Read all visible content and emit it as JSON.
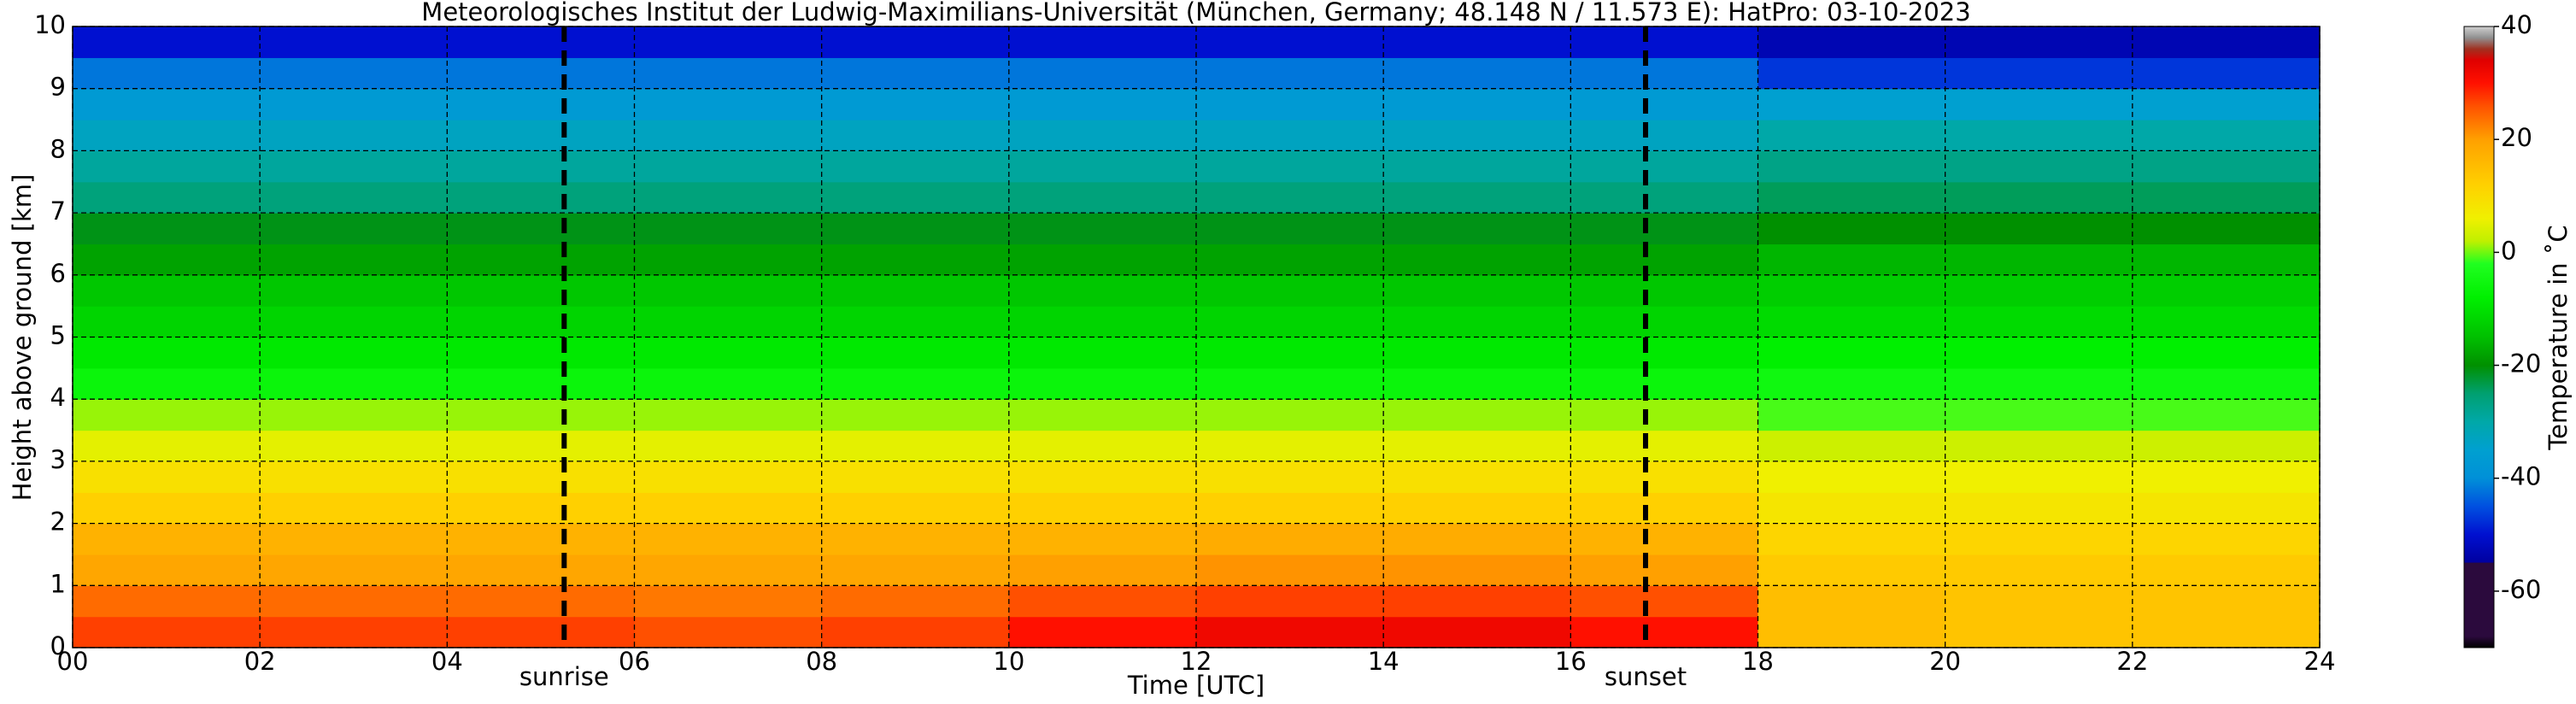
{
  "chart_data": {
    "type": "heatmap",
    "title": "Meteorologisches Institut der Ludwig-Maximilians-Universität (München, Germany; 48.148 N / 11.573 E):    HatPro: 03-10-2023",
    "xlabel": "Time [UTC]",
    "ylabel": "Height above ground [km]",
    "colorbar_label": "Temperature in ˚C",
    "xbins": [
      0,
      2,
      4,
      6,
      8,
      10,
      12,
      14,
      16,
      18,
      20,
      22,
      24
    ],
    "ybins": [
      0,
      0.5,
      1,
      1.5,
      2,
      2.5,
      3,
      3.5,
      4,
      4.5,
      5,
      5.5,
      6,
      6.5,
      7,
      7.5,
      8,
      8.5,
      9,
      9.5,
      10
    ],
    "z": [
      [
        27,
        27,
        27,
        26,
        27,
        30,
        32,
        32,
        30,
        15,
        14,
        14
      ],
      [
        24,
        24,
        24,
        23,
        24,
        26,
        27,
        27,
        26,
        15,
        14,
        14
      ],
      [
        19,
        19,
        19,
        19,
        19,
        20,
        21,
        21,
        20,
        13,
        13,
        13
      ],
      [
        17,
        17,
        17,
        17,
        17,
        17,
        18,
        18,
        17,
        11,
        11,
        11
      ],
      [
        12,
        12,
        12,
        12,
        12,
        12,
        12,
        12,
        12,
        8,
        8,
        8
      ],
      [
        9,
        9,
        9,
        9,
        9,
        9,
        9,
        9,
        9,
        6,
        6,
        6
      ],
      [
        5,
        5,
        5,
        5,
        5,
        5,
        5,
        5,
        5,
        3,
        3,
        3
      ],
      [
        1,
        1,
        1,
        1,
        1,
        1,
        1,
        1,
        1,
        -1,
        -1,
        -1
      ],
      [
        -6,
        -6,
        -6,
        -6,
        -6,
        -6,
        -6,
        -6,
        -6,
        -5,
        -5,
        -5
      ],
      [
        -9,
        -9,
        -9,
        -9,
        -9,
        -9,
        -9,
        -9,
        -9,
        -8,
        -8,
        -8
      ],
      [
        -12,
        -12,
        -12,
        -12,
        -12,
        -12,
        -12,
        -12,
        -12,
        -11,
        -11,
        -11
      ],
      [
        -14,
        -14,
        -14,
        -14,
        -14,
        -14,
        -14,
        -14,
        -14,
        -13,
        -13,
        -13
      ],
      [
        -18,
        -18,
        -18,
        -18,
        -18,
        -18,
        -18,
        -18,
        -18,
        -16,
        -16,
        -16
      ],
      [
        -21,
        -21,
        -21,
        -21,
        -21,
        -21,
        -21,
        -21,
        -21,
        -20,
        -20,
        -20
      ],
      [
        -26,
        -26,
        -26,
        -26,
        -26,
        -26,
        -26,
        -26,
        -26,
        -24,
        -24,
        -24
      ],
      [
        -29,
        -29,
        -29,
        -29,
        -29,
        -29,
        -29,
        -29,
        -29,
        -27,
        -27,
        -27
      ],
      [
        -33,
        -33,
        -33,
        -33,
        -33,
        -33,
        -33,
        -33,
        -33,
        -30,
        -30,
        -30
      ],
      [
        -37,
        -37,
        -37,
        -37,
        -37,
        -37,
        -37,
        -37,
        -37,
        -35,
        -35,
        -35
      ],
      [
        -42,
        -42,
        -42,
        -42,
        -42,
        -42,
        -42,
        -42,
        -42,
        -47,
        -47,
        -47
      ],
      [
        -50,
        -50,
        -50,
        -50,
        -50,
        -50,
        -50,
        -50,
        -50,
        -53,
        -53,
        -53
      ]
    ],
    "xlim": [
      0,
      24
    ],
    "ylim": [
      0,
      10
    ],
    "clim": [
      -70,
      40
    ],
    "xticks": [
      {
        "value": 0,
        "label": "00"
      },
      {
        "value": 2,
        "label": "02"
      },
      {
        "value": 4,
        "label": "04"
      },
      {
        "value": 6,
        "label": "06"
      },
      {
        "value": 8,
        "label": "08"
      },
      10,
      12,
      14,
      16,
      18,
      20,
      22,
      24
    ],
    "yticks": [
      0,
      1,
      2,
      3,
      4,
      5,
      6,
      7,
      8,
      9,
      10
    ],
    "cticks": [
      -60,
      -40,
      -20,
      0,
      20,
      40
    ],
    "grid": true,
    "annotations": [
      {
        "x": 5.25,
        "label": "sunrise"
      },
      {
        "x": 16.8,
        "label": "sunset"
      }
    ],
    "colormap": [
      [
        -70,
        "#000000"
      ],
      [
        -68,
        "#2b0a3d"
      ],
      [
        -55,
        "#2b0a3d"
      ],
      [
        -54.9,
        "#0000a0"
      ],
      [
        -50,
        "#0010d0"
      ],
      [
        -45,
        "#0050e0"
      ],
      [
        -40,
        "#0090d8"
      ],
      [
        -35,
        "#00a0d0"
      ],
      [
        -30,
        "#00a8a8"
      ],
      [
        -25,
        "#00a070"
      ],
      [
        -20,
        "#009000"
      ],
      [
        -15,
        "#00c000"
      ],
      [
        -8,
        "#00f000"
      ],
      [
        -2,
        "#20ff20"
      ],
      [
        2,
        "#c0f000"
      ],
      [
        6,
        "#f0f000"
      ],
      [
        12,
        "#ffd000"
      ],
      [
        20,
        "#ffa000"
      ],
      [
        26,
        "#ff5000"
      ],
      [
        30,
        "#ff1000"
      ],
      [
        34,
        "#e00000"
      ],
      [
        36,
        "#a03020"
      ],
      [
        38,
        "#909090"
      ],
      [
        40,
        "#d0d0d0"
      ]
    ]
  }
}
